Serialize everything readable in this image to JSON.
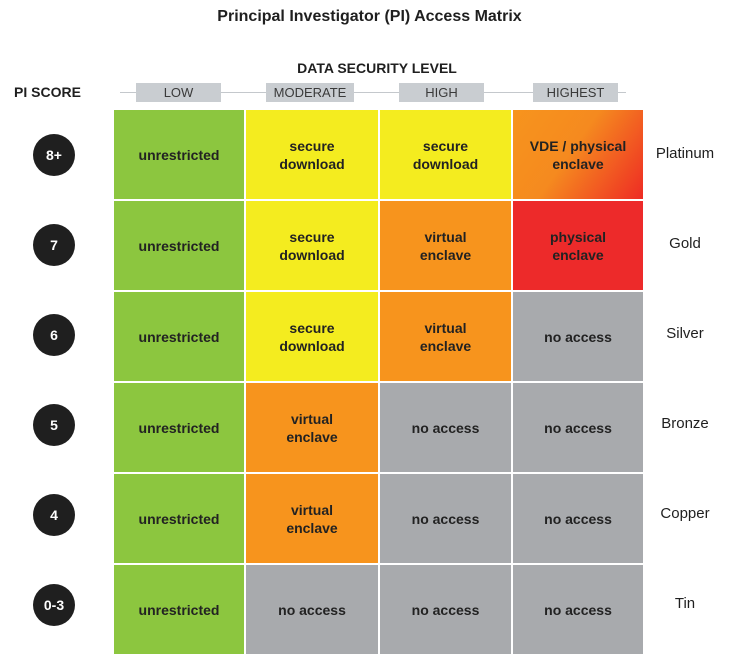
{
  "title": "Principal Investigator (PI) Access Matrix",
  "column_axis_label": "DATA SECURITY LEVEL",
  "row_axis_label": "PI SCORE",
  "columns": [
    "LOW",
    "MODERATE",
    "HIGH",
    "HIGHEST"
  ],
  "rows": [
    {
      "score": "8+",
      "tier": "Platinum",
      "cells": [
        "unrestricted",
        "secure download",
        "secure download",
        "VDE / physical enclave"
      ]
    },
    {
      "score": "7",
      "tier": "Gold",
      "cells": [
        "unrestricted",
        "secure download",
        "virtual enclave",
        "physical enclave"
      ]
    },
    {
      "score": "6",
      "tier": "Silver",
      "cells": [
        "unrestricted",
        "secure download",
        "virtual enclave",
        "no access"
      ]
    },
    {
      "score": "5",
      "tier": "Bronze",
      "cells": [
        "unrestricted",
        "virtual enclave",
        "no access",
        "no access"
      ]
    },
    {
      "score": "4",
      "tier": "Copper",
      "cells": [
        "unrestricted",
        "virtual enclave",
        "no access",
        "no access"
      ]
    },
    {
      "score": "0-3",
      "tier": "Tin",
      "cells": [
        "unrestricted",
        "no access",
        "no access",
        "no access"
      ]
    }
  ],
  "colors": {
    "unrestricted": "#8cc63f",
    "secure download": "#f4ec1f",
    "virtual enclave": "#f7941d",
    "physical enclave": "#ed2a2a",
    "VDE / physical enclave": "gradient #f7941d to #ed2a2a",
    "no access": "#a8aaad",
    "badge": "#1f1f1f"
  }
}
